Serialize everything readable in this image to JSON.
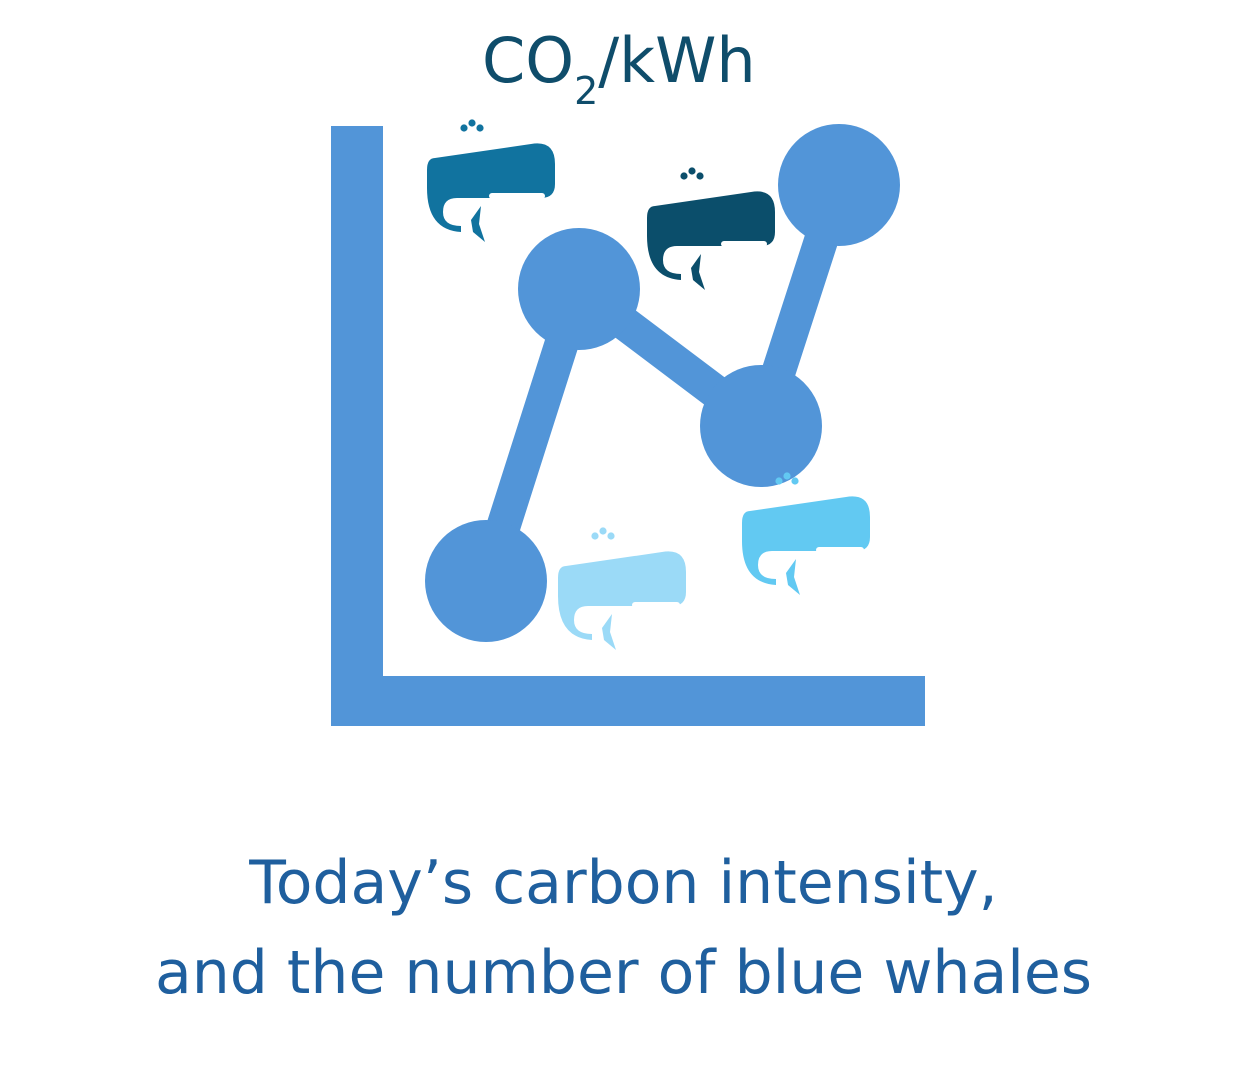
{
  "unit": {
    "prefix": "CO",
    "subscript": "2",
    "suffix": "/kWh"
  },
  "caption": {
    "line1": "Today’s carbon intensity,",
    "line2": "and the number of blue whales"
  },
  "colors": {
    "axis": "#5295d8",
    "line": "#5295d8",
    "dots": "#5295d8",
    "whale_1": "#11739f",
    "whale_2": "#0b4e6b",
    "whale_3": "#9bdaf7",
    "whale_4": "#62c9f2",
    "text_dark": "#0f4d6b",
    "text_caption": "#1f5f9e"
  },
  "icons": [
    "line-chart-icon",
    "whale-icon"
  ]
}
